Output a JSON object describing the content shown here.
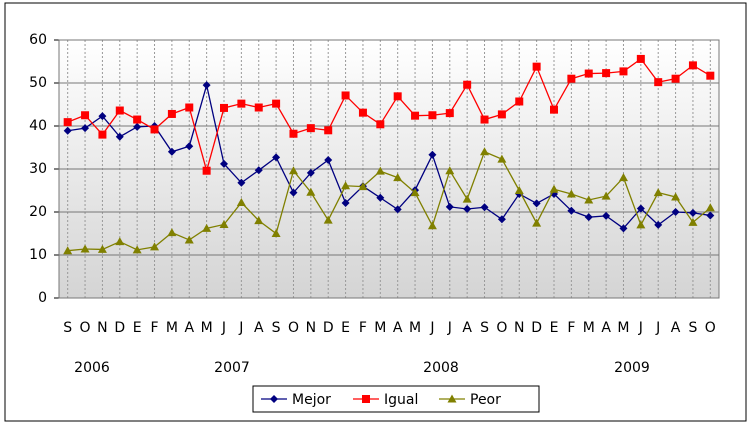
{
  "chart_data": {
    "type": "line",
    "categories": [
      "S",
      "O",
      "N",
      "D",
      "E",
      "F",
      "M",
      "A",
      "M",
      "J",
      "J",
      "A",
      "S",
      "O",
      "N",
      "D",
      "E",
      "F",
      "M",
      "A",
      "M",
      "J",
      "J",
      "A",
      "S",
      "O",
      "N",
      "D",
      "E",
      "F",
      "M",
      "A",
      "M",
      "J",
      "J",
      "A",
      "S",
      "O"
    ],
    "year_labels": [
      "2006",
      "2007",
      "2008",
      "2009"
    ],
    "series": [
      {
        "name": "Mejor",
        "color": "#000080",
        "marker": "diamond",
        "values": [
          38.9,
          39.5,
          42.3,
          37.5,
          39.8,
          40,
          34,
          35.3,
          49.5,
          31.2,
          26.8,
          29.7,
          32.7,
          24.5,
          29.1,
          32.1,
          22.1,
          26,
          23.3,
          20.6,
          25.1,
          33.3,
          21.2,
          20.7,
          21.1,
          18.3,
          24.2,
          22,
          24.2,
          20.3,
          18.8,
          19.1,
          16.2,
          20.8,
          17,
          20,
          19.8,
          19.2
        ]
      },
      {
        "name": "Igual",
        "color": "#ff0000",
        "marker": "square",
        "values": [
          40.9,
          42.5,
          38,
          43.6,
          41.5,
          39.2,
          42.8,
          44.3,
          29.6,
          44.2,
          45.2,
          44.3,
          45.2,
          38.2,
          39.5,
          39,
          47.1,
          43.1,
          40.4,
          46.9,
          42.4,
          42.5,
          43,
          49.6,
          41.5,
          42.7,
          45.7,
          53.8,
          43.8,
          51,
          52.2,
          52.3,
          52.7,
          55.6,
          50.2,
          51,
          54.1,
          51.7
        ]
      },
      {
        "name": "Peor",
        "color": "#808000",
        "marker": "triangle",
        "values": [
          11,
          11.4,
          11.3,
          13.1,
          11.2,
          11.9,
          15.2,
          13.5,
          16.2,
          17.1,
          22.2,
          18,
          15,
          29.6,
          24.6,
          18.1,
          26.1,
          25.9,
          29.5,
          28,
          24.5,
          16.8,
          29.6,
          23,
          34,
          32.3,
          25,
          17.4,
          25.3,
          24.2,
          22.8,
          23.7,
          28,
          17,
          24.5,
          23.5,
          17.6,
          21
        ]
      }
    ],
    "ylim": [
      0,
      60
    ],
    "yticks": [
      0,
      10,
      20,
      30,
      40,
      50,
      60
    ],
    "grid": true,
    "legend": "bottom"
  }
}
